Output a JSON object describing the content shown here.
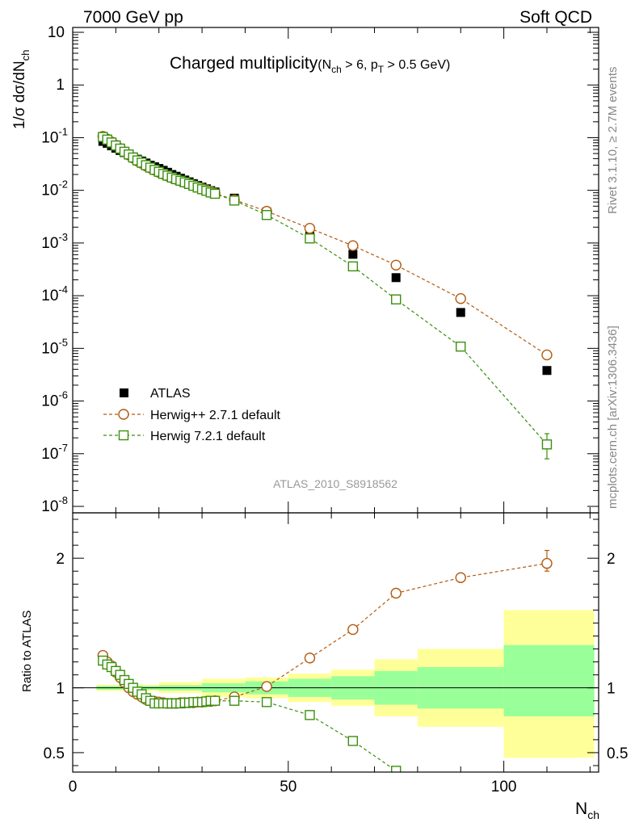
{
  "header": {
    "left": "7000 GeV pp",
    "right": "Soft QCD"
  },
  "side_labels": {
    "rivet": "Rivet 3.1.10, ≥ 2.7M events",
    "mcplots": "mcplots.cern.ch [arXiv:1306.3436]"
  },
  "watermark": "ATLAS_2010_S8918562",
  "chart_data": [
    {
      "type": "scatter",
      "panel": "main",
      "title_main": "Charged multiplicity",
      "title_cond_a": "(N",
      "title_cond_sub_a": "ch",
      "title_cond_b": " > 6, p",
      "title_cond_sub_b": "T",
      "title_cond_c": " > 0.5 GeV)",
      "ylabel_a": "1/σ dσ/dN",
      "ylabel_sub": "ch",
      "yscale": "log",
      "xlim": [
        0,
        122
      ],
      "ylim": [
        1e-08,
        10
      ],
      "ytick_labels": [
        {
          "m": "10",
          "e": "-8",
          "v": 1e-08
        },
        {
          "m": "10",
          "e": "-7",
          "v": 1e-07
        },
        {
          "m": "10",
          "e": "-6",
          "v": 1e-06
        },
        {
          "m": "10",
          "e": "-5",
          "v": 1e-05
        },
        {
          "m": "10",
          "e": "-4",
          "v": 0.0001
        },
        {
          "m": "10",
          "e": "-3",
          "v": 0.001
        },
        {
          "m": "10",
          "e": "-2",
          "v": 0.01
        },
        {
          "m": "10",
          "e": "-1",
          "v": 0.1
        },
        {
          "m": "1",
          "e": "",
          "v": 1
        },
        {
          "m": "10",
          "e": "",
          "v": 10
        }
      ],
      "legend_position": "lower-left",
      "series": [
        {
          "name": "ATLAS",
          "marker": "filled-square",
          "color": "#000000",
          "x": [
            7,
            8,
            9,
            10,
            11,
            12,
            13,
            14,
            15,
            16,
            17,
            18,
            19,
            20,
            21,
            22,
            23,
            24,
            25,
            26,
            27,
            28,
            29,
            30,
            31,
            32,
            33,
            37.5,
            45,
            55,
            65,
            75,
            90,
            110
          ],
          "y": [
            0.085,
            0.078,
            0.07,
            0.063,
            0.057,
            0.052,
            0.047,
            0.043,
            0.039,
            0.036,
            0.033,
            0.03,
            0.028,
            0.026,
            0.024,
            0.022,
            0.02,
            0.0185,
            0.017,
            0.0157,
            0.0145,
            0.0134,
            0.0124,
            0.0115,
            0.0107,
            0.0099,
            0.0093,
            0.0071,
            0.0039,
            0.00155,
            0.00061,
            0.00022,
            4.8e-05,
            3.8e-06
          ]
        },
        {
          "name": "Herwig++ 2.7.1 default",
          "marker": "open-circle",
          "color": "#b35a0e",
          "x": [
            7,
            8,
            9,
            10,
            11,
            12,
            13,
            14,
            15,
            16,
            17,
            18,
            19,
            20,
            21,
            22,
            23,
            24,
            25,
            26,
            27,
            28,
            29,
            30,
            31,
            32,
            33,
            37.5,
            45,
            55,
            65,
            75,
            90,
            110
          ],
          "y": [
            0.106,
            0.094,
            0.083,
            0.072,
            0.062,
            0.054,
            0.047,
            0.041,
            0.036,
            0.0325,
            0.029,
            0.0265,
            0.0242,
            0.022,
            0.0203,
            0.0187,
            0.0173,
            0.0162,
            0.0151,
            0.0142,
            0.0133,
            0.0124,
            0.0116,
            0.0109,
            0.0102,
            0.0096,
            0.0088,
            0.0066,
            0.004,
            0.0019,
            0.00089,
            0.00038,
            8.8e-05,
            7.5e-06
          ],
          "yerr": {
            "110": [
              6.5e-06,
              8.5e-06
            ]
          }
        },
        {
          "name": "Herwig 7.2.1 default",
          "marker": "open-square",
          "color": "#3a8f0e",
          "x": [
            7,
            8,
            9,
            10,
            11,
            12,
            13,
            14,
            15,
            16,
            17,
            18,
            19,
            20,
            21,
            22,
            23,
            24,
            25,
            26,
            27,
            28,
            29,
            30,
            31,
            32,
            33,
            37.5,
            45,
            55,
            65,
            75,
            90,
            110
          ],
          "y": [
            0.103,
            0.092,
            0.081,
            0.071,
            0.062,
            0.054,
            0.048,
            0.042,
            0.037,
            0.0335,
            0.03,
            0.027,
            0.0245,
            0.0225,
            0.0205,
            0.019,
            0.0175,
            0.0163,
            0.0152,
            0.0142,
            0.0132,
            0.0122,
            0.0113,
            0.0105,
            0.0098,
            0.0091,
            0.0086,
            0.0064,
            0.0034,
            0.00122,
            0.00036,
            8.5e-05,
            1.08e-05,
            1.5e-07
          ],
          "yerr": {
            "110": [
              8e-08,
              2.4e-07
            ]
          }
        }
      ]
    },
    {
      "type": "line",
      "panel": "ratio",
      "ylabel": "Ratio to ATLAS",
      "xlabel_a": "N",
      "xlabel_sub": "ch",
      "xlim": [
        0,
        122
      ],
      "ylim": [
        0.35,
        2.35
      ],
      "ytick_labels": [
        {
          "label": "0.5",
          "v": 0.5
        },
        {
          "label": "1",
          "v": 1
        },
        {
          "label": "2",
          "v": 2
        }
      ],
      "xtick_labels": [
        {
          "label": "0",
          "v": 0
        },
        {
          "label": "50",
          "v": 50
        },
        {
          "label": "100",
          "v": 100
        }
      ],
      "reference_line": 1,
      "uncertainty_bands": [
        {
          "x0": 5.5,
          "x1": 10,
          "y_lo": 0.975,
          "y_hi": 1.025,
          "stat_lo": 0.985,
          "stat_hi": 1.015
        },
        {
          "x0": 10,
          "x1": 20,
          "y_lo": 0.975,
          "y_hi": 1.025,
          "stat_lo": 0.985,
          "stat_hi": 1.015
        },
        {
          "x0": 20,
          "x1": 30,
          "y_lo": 0.96,
          "y_hi": 1.045,
          "stat_lo": 0.98,
          "stat_hi": 1.02
        },
        {
          "x0": 30,
          "x1": 40,
          "y_lo": 0.93,
          "y_hi": 1.07,
          "stat_lo": 0.965,
          "stat_hi": 1.035
        },
        {
          "x0": 40,
          "x1": 50,
          "y_lo": 0.92,
          "y_hi": 1.08,
          "stat_lo": 0.95,
          "stat_hi": 1.05
        },
        {
          "x0": 50,
          "x1": 60,
          "y_lo": 0.89,
          "y_hi": 1.11,
          "stat_lo": 0.93,
          "stat_hi": 1.07
        },
        {
          "x0": 60,
          "x1": 70,
          "y_lo": 0.86,
          "y_hi": 1.14,
          "stat_lo": 0.91,
          "stat_hi": 1.09
        },
        {
          "x0": 70,
          "x1": 80,
          "y_lo": 0.78,
          "y_hi": 1.22,
          "stat_lo": 0.87,
          "stat_hi": 1.13
        },
        {
          "x0": 80,
          "x1": 100,
          "y_lo": 0.7,
          "y_hi": 1.3,
          "stat_lo": 0.84,
          "stat_hi": 1.16
        },
        {
          "x0": 100,
          "x1": 121,
          "y_lo": 0.46,
          "y_hi": 1.6,
          "stat_lo": 0.78,
          "stat_hi": 1.33
        }
      ],
      "series": [
        {
          "name": "Herwig++ 2.7.1 default",
          "marker": "open-circle",
          "color": "#b35a0e",
          "x": [
            7,
            8,
            9,
            10,
            11,
            12,
            13,
            14,
            15,
            16,
            17,
            18,
            19,
            20,
            21,
            22,
            23,
            24,
            25,
            26,
            27,
            28,
            29,
            30,
            31,
            32,
            33,
            37.5,
            45,
            55,
            65,
            75,
            90,
            110
          ],
          "y": [
            1.25,
            1.2,
            1.17,
            1.12,
            1.08,
            1.04,
            1.0,
            0.97,
            0.95,
            0.93,
            0.91,
            0.9,
            0.895,
            0.89,
            0.885,
            0.88,
            0.88,
            0.88,
            0.885,
            0.885,
            0.885,
            0.885,
            0.89,
            0.89,
            0.895,
            0.895,
            0.9,
            0.93,
            1.01,
            1.23,
            1.45,
            1.73,
            1.85,
            1.96
          ],
          "yerr": {
            "110": [
              1.9,
              2.06
            ]
          }
        },
        {
          "name": "Herwig 7.2.1 default",
          "marker": "open-square",
          "color": "#3a8f0e",
          "x": [
            7,
            8,
            9,
            10,
            11,
            12,
            13,
            14,
            15,
            16,
            17,
            18,
            19,
            20,
            21,
            22,
            23,
            24,
            25,
            26,
            27,
            28,
            29,
            30,
            31,
            32,
            33,
            37.5,
            45,
            55,
            65,
            75
          ],
          "y": [
            1.21,
            1.18,
            1.16,
            1.13,
            1.1,
            1.06,
            1.03,
            1.0,
            0.97,
            0.95,
            0.92,
            0.9,
            0.88,
            0.88,
            0.88,
            0.88,
            0.88,
            0.88,
            0.88,
            0.885,
            0.885,
            0.89,
            0.89,
            0.89,
            0.895,
            0.9,
            0.9,
            0.9,
            0.89,
            0.79,
            0.59,
            0.36
          ]
        }
      ]
    }
  ]
}
